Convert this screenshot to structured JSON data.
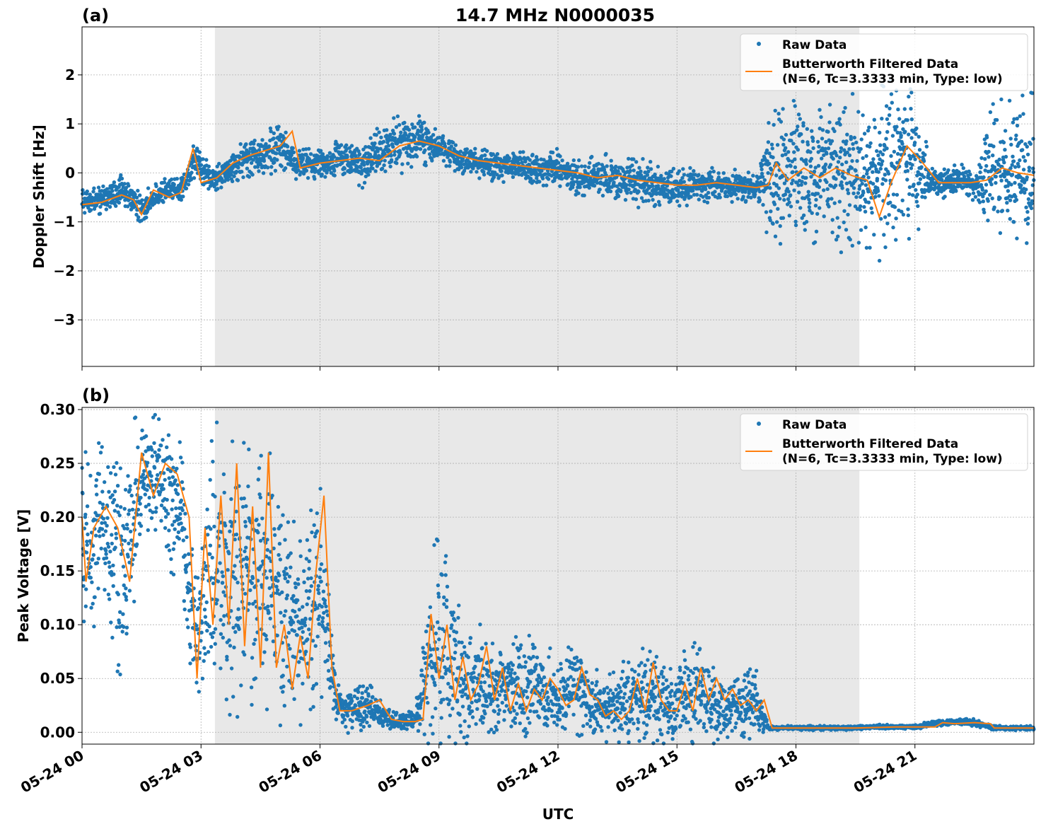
{
  "figure": {
    "x_axis_label": "UTC",
    "x_ticks": [
      "05-24 00",
      "05-24 03",
      "05-24 06",
      "05-24 09",
      "05-24 12",
      "05-24 15",
      "05-24 18",
      "05-24 21"
    ],
    "x_range_hours": [
      0,
      24
    ],
    "shaded_interval_hours": [
      3.35,
      19.6
    ],
    "colors": {
      "raw": "#1f77b4",
      "filtered": "#ff7f0e",
      "shade": "#e8e8e8",
      "grid": "#b0b0b0"
    },
    "legend": {
      "raw_label": "Raw Data",
      "filtered_line1": "Butterworth Filtered Data",
      "filtered_line2": "(N=6, Tc=3.3333 min, Type: low)"
    }
  },
  "chart_data": [
    {
      "type": "scatter",
      "panel_label": "(a)",
      "title": "14.7 MHz N0000035",
      "ylabel": "Doppler Shift [Hz]",
      "xlabel": "",
      "ylim": [
        -3.95,
        2.98
      ],
      "yticks": [
        2,
        1,
        0,
        -1,
        -2,
        -3
      ],
      "ytick_labels": [
        "2",
        "1",
        "0",
        "−1",
        "−2",
        "−3"
      ],
      "grid": true,
      "legend_position": "top-right",
      "series": [
        {
          "name": "Raw Data",
          "style": "points",
          "x": [
            0,
            0.5,
            1.0,
            1.5,
            2.0,
            2.5,
            2.9,
            3.3,
            3.7,
            4.1,
            4.5,
            5.0,
            5.4,
            5.8,
            6.5,
            7.0,
            7.5,
            8.0,
            8.5,
            9.0,
            9.5,
            10.0,
            10.5,
            11.0,
            11.5,
            12.0,
            12.5,
            13.0,
            13.5,
            14.0,
            14.5,
            15.0,
            15.5,
            16.0,
            16.5,
            17.0,
            17.4,
            17.8,
            18.2,
            18.6,
            19.0,
            19.4,
            19.8,
            20.2,
            20.6,
            21.0,
            21.4,
            21.8,
            22.2,
            22.6,
            23.0,
            23.5,
            24.0
          ],
          "y_center": [
            -0.6,
            -0.55,
            -0.35,
            -0.75,
            -0.4,
            -0.3,
            0.3,
            -0.2,
            0.05,
            0.3,
            0.35,
            0.55,
            0.15,
            0.2,
            0.3,
            0.15,
            0.4,
            0.6,
            0.7,
            0.5,
            0.3,
            0.2,
            0.15,
            0.15,
            0.05,
            0.1,
            -0.1,
            -0.05,
            -0.15,
            -0.2,
            -0.25,
            -0.3,
            -0.25,
            -0.25,
            -0.25,
            -0.3,
            0.05,
            0.0,
            0.1,
            -0.05,
            0.1,
            0.0,
            -0.2,
            0.05,
            0.35,
            0.15,
            -0.15,
            -0.2,
            -0.15,
            -0.25,
            -0.05,
            0.05,
            0.0
          ],
          "y_spread": [
            0.25,
            0.25,
            0.3,
            0.3,
            0.25,
            0.25,
            0.4,
            0.3,
            0.3,
            0.35,
            0.4,
            0.45,
            0.3,
            0.3,
            0.4,
            0.45,
            0.5,
            0.55,
            0.5,
            0.4,
            0.3,
            0.3,
            0.3,
            0.3,
            0.3,
            0.35,
            0.35,
            0.4,
            0.45,
            0.45,
            0.45,
            0.35,
            0.35,
            0.3,
            0.3,
            0.3,
            1.4,
            1.5,
            1.5,
            1.5,
            1.5,
            1.5,
            1.5,
            1.6,
            1.5,
            1.4,
            0.3,
            0.3,
            0.3,
            0.3,
            1.5,
            1.5,
            1.5
          ]
        },
        {
          "name": "Butterworth Filtered Data",
          "style": "line",
          "x": [
            0,
            0.5,
            1.0,
            1.3,
            1.5,
            1.8,
            2.2,
            2.5,
            2.8,
            3.0,
            3.4,
            3.8,
            4.2,
            4.6,
            5.0,
            5.3,
            5.5,
            6.0,
            6.5,
            7.0,
            7.5,
            8.0,
            8.5,
            9.0,
            9.5,
            10.0,
            10.5,
            11.0,
            11.5,
            12.0,
            12.5,
            13.0,
            13.5,
            14.0,
            14.5,
            15.0,
            15.5,
            16.0,
            16.5,
            17.0,
            17.3,
            17.5,
            17.8,
            18.2,
            18.6,
            19.0,
            19.4,
            19.8,
            20.1,
            20.4,
            20.8,
            21.2,
            21.6,
            22.0,
            22.4,
            22.8,
            23.2,
            23.6,
            24.0
          ],
          "y": [
            -0.65,
            -0.6,
            -0.45,
            -0.55,
            -0.85,
            -0.35,
            -0.5,
            -0.4,
            0.5,
            -0.2,
            -0.1,
            0.2,
            0.35,
            0.45,
            0.55,
            0.85,
            0.1,
            0.2,
            0.25,
            0.3,
            0.25,
            0.55,
            0.65,
            0.55,
            0.35,
            0.25,
            0.2,
            0.15,
            0.1,
            0.05,
            0.0,
            -0.1,
            -0.05,
            -0.15,
            -0.2,
            -0.25,
            -0.25,
            -0.2,
            -0.25,
            -0.3,
            -0.25,
            0.2,
            -0.15,
            0.1,
            -0.1,
            0.1,
            -0.05,
            -0.15,
            -0.9,
            -0.2,
            0.55,
            0.2,
            -0.2,
            -0.2,
            -0.2,
            -0.15,
            0.1,
            0.0,
            -0.05
          ]
        }
      ]
    },
    {
      "type": "scatter",
      "panel_label": "(b)",
      "title": "",
      "ylabel": "Peak Voltage [V]",
      "xlabel": "UTC",
      "ylim": [
        -0.011,
        0.302
      ],
      "yticks": [
        0.3,
        0.25,
        0.2,
        0.15,
        0.1,
        0.05,
        0.0
      ],
      "ytick_labels": [
        "0.30",
        "0.25",
        "0.20",
        "0.15",
        "0.10",
        "0.05",
        "0.00"
      ],
      "grid": true,
      "legend_position": "top-right",
      "series": [
        {
          "name": "Raw Data",
          "style": "points",
          "x": [
            0,
            0.5,
            1.0,
            1.5,
            2.0,
            2.5,
            2.9,
            3.3,
            3.7,
            4.1,
            4.5,
            5.0,
            5.5,
            6.0,
            6.4,
            6.8,
            7.2,
            7.6,
            8.0,
            8.4,
            8.8,
            9.2,
            9.6,
            10.0,
            10.5,
            11.0,
            11.5,
            12.0,
            12.5,
            13.0,
            13.5,
            14.0,
            14.5,
            15.0,
            15.5,
            16.0,
            16.5,
            17.0,
            17.3,
            17.6,
            18.0,
            19.0,
            20.0,
            21.0,
            21.6,
            22.0,
            22.5,
            23.0,
            24.0
          ],
          "y_center": [
            0.17,
            0.19,
            0.15,
            0.24,
            0.24,
            0.2,
            0.09,
            0.16,
            0.14,
            0.14,
            0.16,
            0.12,
            0.09,
            0.14,
            0.03,
            0.02,
            0.025,
            0.015,
            0.01,
            0.012,
            0.07,
            0.08,
            0.04,
            0.045,
            0.035,
            0.045,
            0.04,
            0.03,
            0.04,
            0.025,
            0.025,
            0.035,
            0.03,
            0.03,
            0.04,
            0.02,
            0.025,
            0.03,
            0.004,
            0.004,
            0.004,
            0.004,
            0.005,
            0.005,
            0.009,
            0.01,
            0.009,
            0.004,
            0.004
          ],
          "y_spread": [
            0.1,
            0.09,
            0.12,
            0.05,
            0.05,
            0.08,
            0.06,
            0.12,
            0.12,
            0.12,
            0.12,
            0.12,
            0.08,
            0.1,
            0.02,
            0.02,
            0.02,
            0.01,
            0.008,
            0.008,
            0.09,
            0.1,
            0.05,
            0.05,
            0.04,
            0.05,
            0.04,
            0.04,
            0.04,
            0.03,
            0.03,
            0.04,
            0.04,
            0.04,
            0.05,
            0.03,
            0.03,
            0.03,
            0.002,
            0.002,
            0.002,
            0.002,
            0.002,
            0.002,
            0.003,
            0.003,
            0.003,
            0.002,
            0.002
          ]
        },
        {
          "name": "Butterworth Filtered Data",
          "style": "line",
          "x": [
            0,
            0.1,
            0.3,
            0.6,
            0.9,
            1.2,
            1.5,
            1.8,
            2.1,
            2.4,
            2.7,
            2.9,
            3.1,
            3.3,
            3.5,
            3.7,
            3.9,
            4.1,
            4.3,
            4.5,
            4.7,
            4.9,
            5.1,
            5.3,
            5.5,
            5.7,
            5.9,
            6.1,
            6.3,
            6.5,
            6.8,
            7.2,
            7.5,
            7.8,
            8.1,
            8.4,
            8.6,
            8.8,
            9.0,
            9.2,
            9.4,
            9.6,
            9.8,
            10.0,
            10.2,
            10.4,
            10.6,
            10.8,
            11.0,
            11.2,
            11.4,
            11.6,
            11.8,
            12.0,
            12.2,
            12.4,
            12.6,
            12.8,
            13.0,
            13.2,
            13.4,
            13.6,
            13.8,
            14.0,
            14.2,
            14.4,
            14.6,
            14.8,
            15.0,
            15.2,
            15.4,
            15.6,
            15.8,
            16.0,
            16.2,
            16.4,
            16.6,
            16.8,
            17.0,
            17.2,
            17.4,
            17.8,
            18.5,
            19.5,
            20.5,
            21.5,
            21.7,
            22.0,
            22.5,
            22.9,
            23.0,
            24.0
          ],
          "y": [
            0.2,
            0.14,
            0.19,
            0.21,
            0.19,
            0.14,
            0.26,
            0.22,
            0.25,
            0.24,
            0.2,
            0.05,
            0.19,
            0.1,
            0.22,
            0.1,
            0.25,
            0.08,
            0.21,
            0.06,
            0.26,
            0.06,
            0.1,
            0.04,
            0.09,
            0.05,
            0.15,
            0.22,
            0.06,
            0.02,
            0.02,
            0.025,
            0.03,
            0.012,
            0.01,
            0.01,
            0.012,
            0.11,
            0.05,
            0.1,
            0.03,
            0.07,
            0.03,
            0.045,
            0.08,
            0.03,
            0.06,
            0.02,
            0.045,
            0.02,
            0.04,
            0.03,
            0.05,
            0.04,
            0.025,
            0.03,
            0.06,
            0.035,
            0.03,
            0.015,
            0.02,
            0.012,
            0.02,
            0.05,
            0.02,
            0.065,
            0.03,
            0.02,
            0.02,
            0.045,
            0.02,
            0.06,
            0.03,
            0.05,
            0.03,
            0.04,
            0.025,
            0.03,
            0.02,
            0.03,
            0.004,
            0.004,
            0.004,
            0.004,
            0.005,
            0.005,
            0.009,
            0.008,
            0.009,
            0.008,
            0.004,
            0.004
          ]
        }
      ]
    }
  ]
}
